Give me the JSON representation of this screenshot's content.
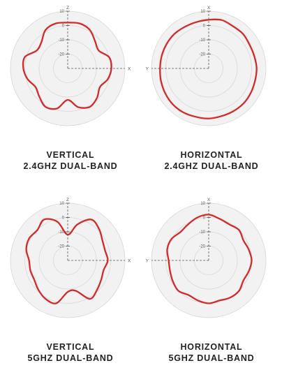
{
  "chart_data": [
    {
      "type": "polar",
      "rlim": [
        -30,
        10
      ],
      "r_ticks": [
        10,
        0,
        -10,
        -20
      ],
      "top_axis": "Z",
      "side_axis": "X",
      "side_position": "right",
      "caption_lines": [
        "VERTICAL",
        "2.4GHZ DUAL-BAND"
      ],
      "line_color": "#d22a2a",
      "series": [
        {
          "angles_deg": [
            0,
            15,
            30,
            45,
            60,
            75,
            90,
            105,
            120,
            135,
            150,
            165,
            180,
            195,
            210,
            225,
            240,
            255,
            270,
            285,
            300,
            315,
            330,
            345
          ],
          "values": [
            2,
            2.5,
            1,
            -3,
            -5,
            0,
            0.5,
            -1,
            -4,
            -1,
            1,
            -2,
            -8,
            -1,
            1,
            -2,
            -4,
            -1,
            1,
            1,
            -5,
            -4,
            1,
            2.5
          ]
        }
      ]
    },
    {
      "type": "polar",
      "rlim": [
        -30,
        10
      ],
      "r_ticks": [
        10,
        0,
        -10,
        -20
      ],
      "top_axis": "X",
      "side_axis": "Y",
      "side_position": "left",
      "caption_lines": [
        "HORIZONTAL",
        "2.4GHZ DUAL-BAND"
      ],
      "line_color": "#d22a2a",
      "series": [
        {
          "angles_deg": [
            0,
            15,
            30,
            45,
            60,
            75,
            90,
            105,
            120,
            135,
            150,
            165,
            180,
            195,
            210,
            225,
            240,
            255,
            270,
            285,
            300,
            315,
            330,
            345
          ],
          "values": [
            4,
            5,
            4,
            4,
            3,
            3,
            3.5,
            3.5,
            4,
            4.5,
            4.5,
            4.5,
            5,
            5,
            5.5,
            5.5,
            5,
            4.5,
            4,
            4,
            4,
            4,
            3.5,
            3.5
          ]
        }
      ]
    },
    {
      "type": "polar",
      "rlim": [
        -30,
        10
      ],
      "r_ticks": [
        10,
        0,
        -10,
        -20
      ],
      "top_axis": "Z",
      "side_axis": "X",
      "side_position": "right",
      "caption_lines": [
        "VERTICAL",
        "5GHZ DUAL-BAND"
      ],
      "line_color": "#d22a2a",
      "series": [
        {
          "angles_deg": [
            0,
            15,
            30,
            45,
            60,
            75,
            90,
            105,
            120,
            135,
            150,
            165,
            180,
            195,
            210,
            225,
            240,
            255,
            270,
            285,
            300,
            315,
            330,
            345
          ],
          "values": [
            -12,
            -4,
            3,
            1,
            -2,
            -3,
            -2,
            -4,
            -3,
            -1,
            1,
            -8,
            -8,
            1,
            1,
            -1,
            -3,
            -3,
            -3,
            0,
            1,
            0,
            3,
            -2
          ]
        }
      ]
    },
    {
      "type": "polar",
      "rlim": [
        -30,
        10
      ],
      "r_ticks": [
        10,
        0,
        -10,
        -20
      ],
      "top_axis": "X",
      "side_axis": "Y",
      "side_position": "left",
      "caption_lines": [
        "HORIZONTAL",
        "5GHZ DUAL-BAND"
      ],
      "line_color": "#d22a2a",
      "series": [
        {
          "angles_deg": [
            0,
            15,
            30,
            45,
            60,
            75,
            90,
            105,
            120,
            135,
            150,
            165,
            180,
            195,
            210,
            225,
            240,
            255,
            270,
            285,
            300,
            315,
            330,
            345
          ],
          "values": [
            2,
            0,
            -1,
            0,
            -2,
            -1,
            0,
            -1,
            -2,
            0,
            0,
            -1,
            0,
            -1,
            -2,
            0,
            -1,
            -2,
            -2,
            0,
            0,
            -2,
            -1,
            1
          ]
        }
      ]
    }
  ]
}
